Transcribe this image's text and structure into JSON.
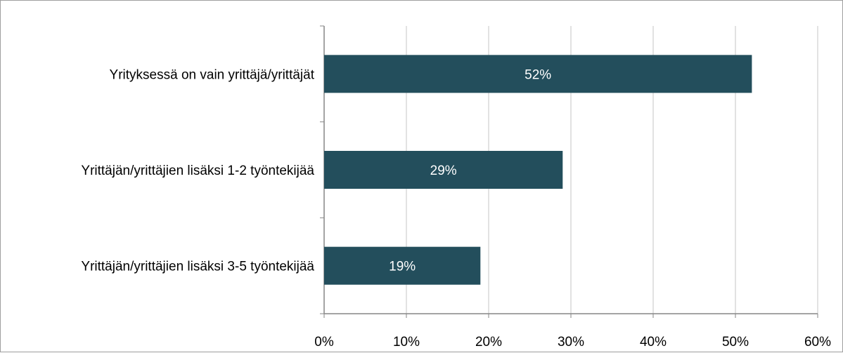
{
  "chart_data": {
    "type": "bar",
    "orientation": "horizontal",
    "categories": [
      "Yrityksessä on vain yrittäjä/yrittäjät",
      "Yrittäjän/yrittäjien lisäksi 1-2 työntekijää",
      "Yrittäjän/yrittäjien lisäksi 3-5 työntekijää"
    ],
    "values": [
      52,
      29,
      19
    ],
    "data_labels": [
      "52%",
      "29%",
      "19%"
    ],
    "xlim": [
      0,
      60
    ],
    "x_ticks": [
      0,
      10,
      20,
      30,
      40,
      50,
      60
    ],
    "x_tick_labels": [
      "0%",
      "10%",
      "20%",
      "30%",
      "40%",
      "50%",
      "60%"
    ],
    "title": "",
    "xlabel": "",
    "ylabel": "",
    "grid": "vertical",
    "legend": "none",
    "colors": {
      "bar": "#234e5c",
      "grid": "#d9d9d9",
      "axis": "#868686",
      "data_label_text": "#ffffff",
      "frame": "#9e9e9e"
    }
  }
}
